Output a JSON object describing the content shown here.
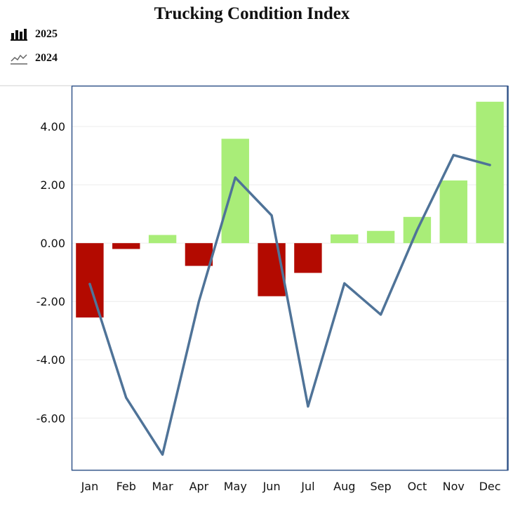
{
  "chart_data": {
    "type": "bar",
    "title": "Trucking Condition Index",
    "categories": [
      "Jan",
      "Feb",
      "Mar",
      "Apr",
      "May",
      "Jun",
      "Jul",
      "Aug",
      "Sep",
      "Oct",
      "Nov",
      "Dec"
    ],
    "series": [
      {
        "name": "2025",
        "type": "bar",
        "values": [
          -2.55,
          -0.2,
          0.28,
          -0.78,
          3.58,
          -1.82,
          -1.02,
          0.3,
          0.42,
          0.9,
          2.15,
          4.85
        ]
      },
      {
        "name": "2024",
        "type": "line",
        "values": [
          -1.4,
          -5.3,
          -7.25,
          -2.0,
          2.25,
          0.95,
          -5.6,
          -1.38,
          -2.45,
          0.45,
          3.02,
          2.68
        ]
      }
    ],
    "ylim": [
      -7.8,
      5.4
    ],
    "yticks": [
      "4.00",
      "2.00",
      "0.00",
      "-2.00",
      "-4.00",
      "-6.00"
    ],
    "ytick_values": [
      4,
      2,
      0,
      -2,
      -4,
      -6
    ],
    "legend_position": "top-left",
    "colors": {
      "positive": "#a9ed78",
      "negative": "#b30a00",
      "line": "#4f7398",
      "frame": "#34568a"
    }
  }
}
